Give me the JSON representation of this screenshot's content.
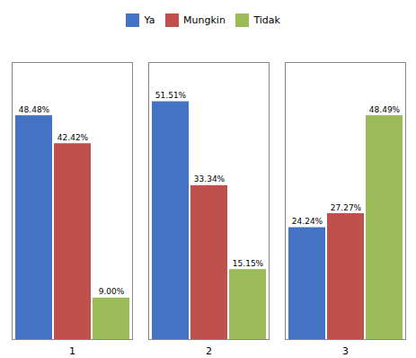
{
  "chart_data": {
    "type": "bar",
    "categories": [
      "1",
      "2",
      "3"
    ],
    "series": [
      {
        "name": "Ya",
        "color": "#4472C4",
        "values": [
          48.48,
          51.51,
          24.24
        ],
        "value_labels": [
          "48.48%",
          "51.51%",
          "24.24%"
        ]
      },
      {
        "name": "Mungkin",
        "color": "#C0504D",
        "values": [
          42.42,
          33.34,
          27.27
        ],
        "value_labels": [
          "42.42%",
          "33.34%",
          "27.27%"
        ]
      },
      {
        "name": "Tidak",
        "color": "#9BBB59",
        "values": [
          9.0,
          15.15,
          48.49
        ],
        "value_labels": [
          "9.00%",
          "15.15%",
          "48.49%"
        ]
      }
    ],
    "ylim": [
      0,
      60
    ],
    "data_labels": true,
    "legend": "top",
    "tick_labels": "x",
    "grid": false
  }
}
